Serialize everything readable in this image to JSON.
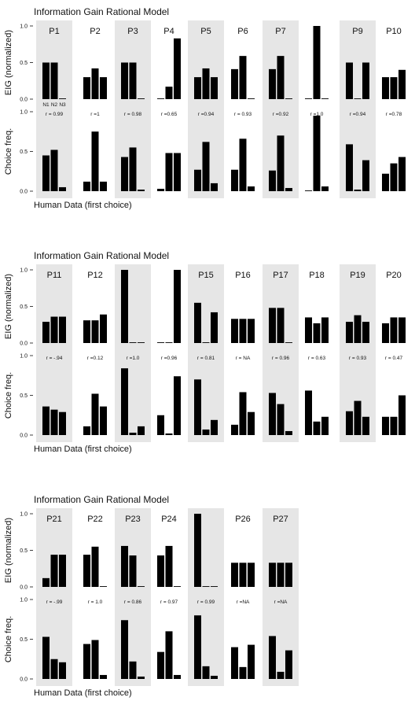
{
  "chart_data": [
    {
      "type": "bar",
      "title": "Information Gain Rational Model",
      "ylabel_top": "EIG (normalized)",
      "ylabel_bottom": "Choice freq.",
      "xlabel": "Human Data (first choice)",
      "yticks": [
        "1.0",
        "0.5",
        "0.0"
      ],
      "ylim": [
        0,
        1
      ],
      "categories": [
        "N1",
        "N2",
        "N3"
      ],
      "panels": [
        {
          "label": "P1",
          "shaded": true,
          "r": "r = 0.99",
          "eig": [
            0.5,
            0.5,
            0.0
          ],
          "choice": [
            0.45,
            0.52,
            0.05
          ]
        },
        {
          "label": "P2",
          "shaded": false,
          "r": "r =1",
          "eig": [
            0.3,
            0.42,
            0.3
          ],
          "choice": [
            0.12,
            0.75,
            0.12
          ]
        },
        {
          "label": "P3",
          "shaded": true,
          "r": "r = 0.98",
          "eig": [
            0.5,
            0.5,
            0.0
          ],
          "choice": [
            0.43,
            0.55,
            0.02
          ]
        },
        {
          "label": "P4",
          "shaded": false,
          "r": "r =0.65",
          "eig": [
            0.0,
            0.17,
            0.83
          ],
          "choice": [
            0.03,
            0.48,
            0.48
          ]
        },
        {
          "label": "P5",
          "shaded": true,
          "r": "r =0.94",
          "eig": [
            0.3,
            0.42,
            0.3
          ],
          "choice": [
            0.27,
            0.62,
            0.1
          ]
        },
        {
          "label": "P6",
          "shaded": false,
          "r": "r = 0.93",
          "eig": [
            0.41,
            0.59,
            0.0
          ],
          "choice": [
            0.27,
            0.66,
            0.06
          ]
        },
        {
          "label": "P7",
          "shaded": true,
          "r": "r =0.92",
          "eig": [
            0.41,
            0.59,
            0.0
          ],
          "choice": [
            0.26,
            0.7,
            0.04
          ]
        },
        {
          "label": "",
          "shaded": false,
          "r": "r =1.0",
          "eig": [
            0.0,
            1.0,
            0.0
          ],
          "choice": [
            0.0,
            0.95,
            0.06
          ]
        },
        {
          "label": "P9",
          "shaded": true,
          "r": "r =0.94",
          "eig": [
            0.5,
            0.0,
            0.5
          ],
          "choice": [
            0.59,
            0.02,
            0.39
          ]
        },
        {
          "label": "P10",
          "shaded": false,
          "r": "r =0.78",
          "eig": [
            0.3,
            0.3,
            0.4
          ],
          "choice": [
            0.22,
            0.35,
            0.43
          ]
        }
      ]
    },
    {
      "type": "bar",
      "title": "Information Gain Rational Model",
      "ylabel_top": "EIG (normalized)",
      "ylabel_bottom": "Choice freq.",
      "xlabel": "Human Data (first choice)",
      "yticks": [
        "1.0",
        "0.5",
        "0.0"
      ],
      "ylim": [
        0,
        1
      ],
      "panels": [
        {
          "label": "P11",
          "shaded": true,
          "r": "r = -.94",
          "eig": [
            0.29,
            0.36,
            0.36
          ],
          "choice": [
            0.36,
            0.32,
            0.29
          ]
        },
        {
          "label": "P12",
          "shaded": false,
          "r": "r =0.12",
          "eig": [
            0.31,
            0.31,
            0.39
          ],
          "choice": [
            0.11,
            0.52,
            0.36
          ]
        },
        {
          "label": "",
          "shaded": true,
          "r": "r =1.0",
          "eig": [
            1.0,
            0.0,
            0.0
          ],
          "choice": [
            0.84,
            0.03,
            0.11
          ]
        },
        {
          "label": "",
          "shaded": false,
          "r": "r =0.96",
          "eig": [
            0.0,
            0.0,
            1.0
          ],
          "choice": [
            0.25,
            0.02,
            0.74
          ]
        },
        {
          "label": "P15",
          "shaded": true,
          "r": "r = 0.81",
          "eig": [
            0.55,
            0.0,
            0.42
          ],
          "choice": [
            0.7,
            0.07,
            0.19
          ]
        },
        {
          "label": "P16",
          "shaded": false,
          "r": "r = NA",
          "eig": [
            0.33,
            0.33,
            0.33
          ],
          "choice": [
            0.13,
            0.54,
            0.29
          ]
        },
        {
          "label": "P17",
          "shaded": true,
          "r": "r = 0.96",
          "eig": [
            0.48,
            0.48,
            0.0
          ],
          "choice": [
            0.53,
            0.39,
            0.05
          ]
        },
        {
          "label": "P18",
          "shaded": false,
          "r": "r = 0.63",
          "eig": [
            0.35,
            0.27,
            0.35
          ],
          "choice": [
            0.56,
            0.17,
            0.23
          ]
        },
        {
          "label": "P19",
          "shaded": true,
          "r": "r = 0.93",
          "eig": [
            0.29,
            0.38,
            0.29
          ],
          "choice": [
            0.3,
            0.43,
            0.23
          ]
        },
        {
          "label": "P20",
          "shaded": false,
          "r": "r = 0.47",
          "eig": [
            0.27,
            0.35,
            0.35
          ],
          "choice": [
            0.23,
            0.23,
            0.5
          ]
        }
      ]
    },
    {
      "type": "bar",
      "title": "Information Gain Rational Model",
      "ylabel_top": "EIG (normalized)",
      "ylabel_bottom": "Choice freq.",
      "xlabel": "Human Data (first choice)",
      "yticks": [
        "1.0",
        "0.5",
        "0.0"
      ],
      "ylim": [
        0,
        1
      ],
      "panels": [
        {
          "label": "P21",
          "shaded": true,
          "r": "r = -.99",
          "eig": [
            0.12,
            0.44,
            0.44
          ],
          "choice": [
            0.53,
            0.25,
            0.21
          ]
        },
        {
          "label": "P22",
          "shaded": false,
          "r": "r = 1.0",
          "eig": [
            0.44,
            0.55,
            0.0
          ],
          "choice": [
            0.44,
            0.49,
            0.05
          ]
        },
        {
          "label": "P23",
          "shaded": true,
          "r": "r = 0.86",
          "eig": [
            0.56,
            0.43,
            0.0
          ],
          "choice": [
            0.74,
            0.22,
            0.03
          ]
        },
        {
          "label": "P24",
          "shaded": false,
          "r": "r = 0.97",
          "eig": [
            0.43,
            0.56,
            0.0
          ],
          "choice": [
            0.34,
            0.6,
            0.05
          ]
        },
        {
          "label": "",
          "shaded": true,
          "r": "r = 0.99",
          "eig": [
            1.0,
            0.0,
            0.0
          ],
          "choice": [
            0.8,
            0.16,
            0.04
          ]
        },
        {
          "label": "P26",
          "shaded": false,
          "r": "r =NA",
          "eig": [
            0.33,
            0.33,
            0.33
          ],
          "choice": [
            0.4,
            0.15,
            0.43
          ]
        },
        {
          "label": "P27",
          "shaded": true,
          "r": "r =NA",
          "eig": [
            0.33,
            0.33,
            0.33
          ],
          "choice": [
            0.54,
            0.09,
            0.36
          ]
        }
      ]
    }
  ]
}
